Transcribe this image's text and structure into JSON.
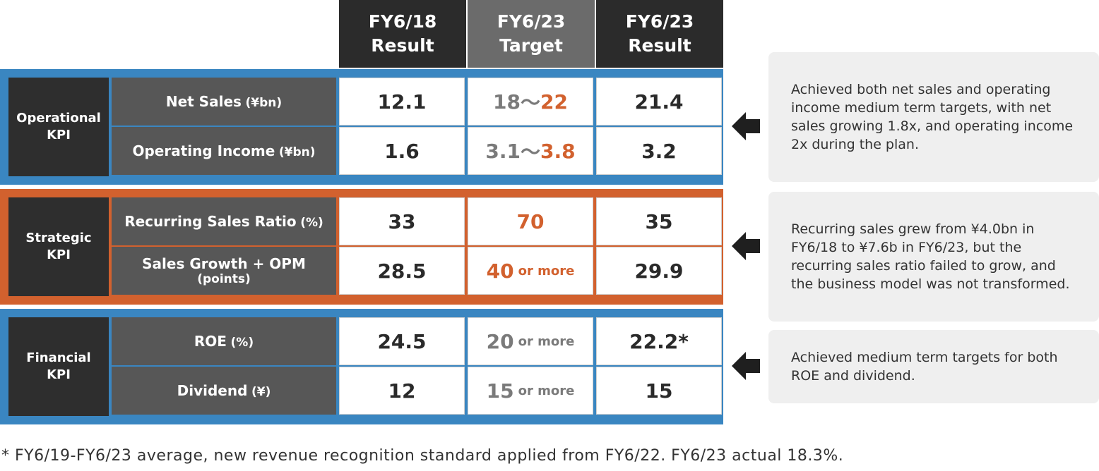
{
  "headers": [
    {
      "line1": "FY6/18",
      "line2": "Result"
    },
    {
      "line1": "FY6/23",
      "line2": "Target"
    },
    {
      "line1": "FY6/23",
      "line2": "Result"
    }
  ],
  "groups": [
    {
      "category": [
        "Operational",
        "KPI"
      ],
      "color": "#3a86c1",
      "rows": [
        {
          "label": "Net Sales",
          "unit": "(¥bn)",
          "fy18": "12.1",
          "target": {
            "low": "18",
            "sep": "〜",
            "high": "22"
          },
          "fy23": "21.4"
        },
        {
          "label": "Operating Income",
          "unit": "(¥bn)",
          "fy18": "1.6",
          "target": {
            "low": "3.1",
            "sep": "〜",
            "high": "3.8"
          },
          "fy23": "3.2"
        }
      ]
    },
    {
      "category": [
        "Strategic",
        "KPI"
      ],
      "color": "#d2612e",
      "rows": [
        {
          "label": "Recurring Sales Ratio",
          "unit": "(%)",
          "fy18": "33",
          "target": {
            "value": "70"
          },
          "fy23": "35"
        },
        {
          "label": "Sales Growth + OPM",
          "sub": "(points)",
          "fy18": "28.5",
          "target": {
            "value": "40",
            "suffix": "or more"
          },
          "fy23": "29.9"
        }
      ]
    },
    {
      "category": [
        "Financial",
        "KPI"
      ],
      "color": "#3a86c1",
      "rows": [
        {
          "label": "ROE",
          "unit": "(%)",
          "fy18": "24.5",
          "target": {
            "value": "20",
            "suffix": "or more"
          },
          "fy23": "22.2*"
        },
        {
          "label": "Dividend",
          "unit": "(¥)",
          "fy18": "12",
          "target": {
            "value": "15",
            "suffix": "or more"
          },
          "fy23": "15"
        }
      ]
    }
  ],
  "notes": [
    "Achieved both net sales and operating income medium term targets, with net sales growing 1.8x, and operating income 2x during the plan.",
    "Recurring sales grew from ¥4.0bn in FY6/18 to ¥7.6b in FY6/23, but the recurring sales ratio failed to grow, and the business model was not transformed.",
    "Achieved medium term targets for both ROE and dividend."
  ],
  "icons": [
    "left-arrow-icon"
  ],
  "footnote": "* FY6/19-FY6/23 average, new revenue recognition standard applied from FY6/22. FY6/23 actual 18.3%."
}
